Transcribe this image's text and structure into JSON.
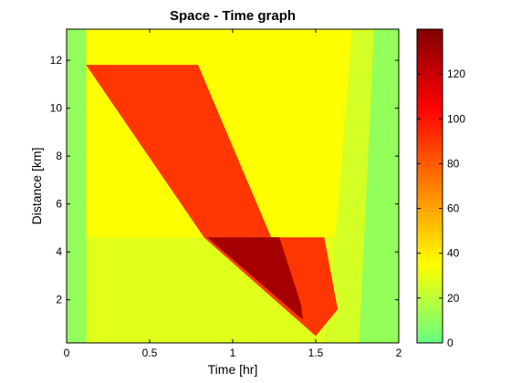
{
  "chart_data": {
    "type": "heatmap",
    "title": "Space - Time graph",
    "xlabel": "Time [hr]",
    "ylabel": "Distance [km]",
    "xlim": [
      0,
      2
    ],
    "ylim": [
      0.2,
      13.3
    ],
    "x_ticks": [
      0,
      0.5,
      1,
      1.5,
      2
    ],
    "x_tick_labels": [
      "0",
      "0.5",
      "1",
      "1.5",
      "2"
    ],
    "y_ticks": [
      2,
      4,
      6,
      8,
      10,
      12
    ],
    "y_tick_labels": [
      "2",
      "4",
      "6",
      "8",
      "10",
      "12"
    ],
    "colorbar": {
      "min": 0,
      "max": 140,
      "ticks": [
        0,
        20,
        40,
        60,
        80,
        100,
        120
      ],
      "tick_labels": [
        "0",
        "20",
        "40",
        "60",
        "80",
        "100",
        "120"
      ],
      "colormap": [
        "#66ff80",
        "#ffff00",
        "#ff7f00",
        "#ff0000",
        "#800000"
      ]
    },
    "regions": [
      {
        "label": "free-flow-left",
        "value": 10,
        "polygon": [
          [
            0,
            0.2
          ],
          [
            0.12,
            0.2
          ],
          [
            0.12,
            13.3
          ],
          [
            0,
            13.3
          ]
        ]
      },
      {
        "label": "free-flow-right",
        "value": 10,
        "polygon": [
          [
            1.76,
            0.2
          ],
          [
            2,
            0.2
          ],
          [
            2,
            13.3
          ],
          [
            1.76,
            13.3
          ]
        ]
      },
      {
        "label": "upper-state",
        "value": 35,
        "polygon": [
          [
            0.12,
            4.6
          ],
          [
            1.62,
            4.6
          ],
          [
            1.72,
            13.3
          ],
          [
            0.12,
            13.3
          ]
        ]
      },
      {
        "label": "lower-state",
        "value": 28,
        "polygon": [
          [
            0.12,
            0.2
          ],
          [
            1.55,
            0.2
          ],
          [
            1.62,
            4.6
          ],
          [
            0.12,
            4.6
          ]
        ]
      },
      {
        "label": "right-transition",
        "value": 25,
        "polygon": [
          [
            1.55,
            0.2
          ],
          [
            1.76,
            0.2
          ],
          [
            1.85,
            13.3
          ],
          [
            1.72,
            13.3
          ],
          [
            1.62,
            4.6
          ]
        ]
      },
      {
        "label": "congestion-upper",
        "value": 90,
        "polygon": [
          [
            0.12,
            11.8
          ],
          [
            0.79,
            11.8
          ],
          [
            1.23,
            4.6
          ],
          [
            0.83,
            4.6
          ]
        ]
      },
      {
        "label": "congestion-lower",
        "value": 90,
        "polygon": [
          [
            0.83,
            4.6
          ],
          [
            1.55,
            4.6
          ],
          [
            1.63,
            1.6
          ],
          [
            1.5,
            0.5
          ]
        ]
      },
      {
        "label": "congestion-core",
        "value": 130,
        "polygon": [
          [
            0.85,
            4.6
          ],
          [
            1.28,
            4.6
          ],
          [
            1.41,
            1.8
          ],
          [
            1.42,
            1.2
          ]
        ]
      }
    ]
  }
}
